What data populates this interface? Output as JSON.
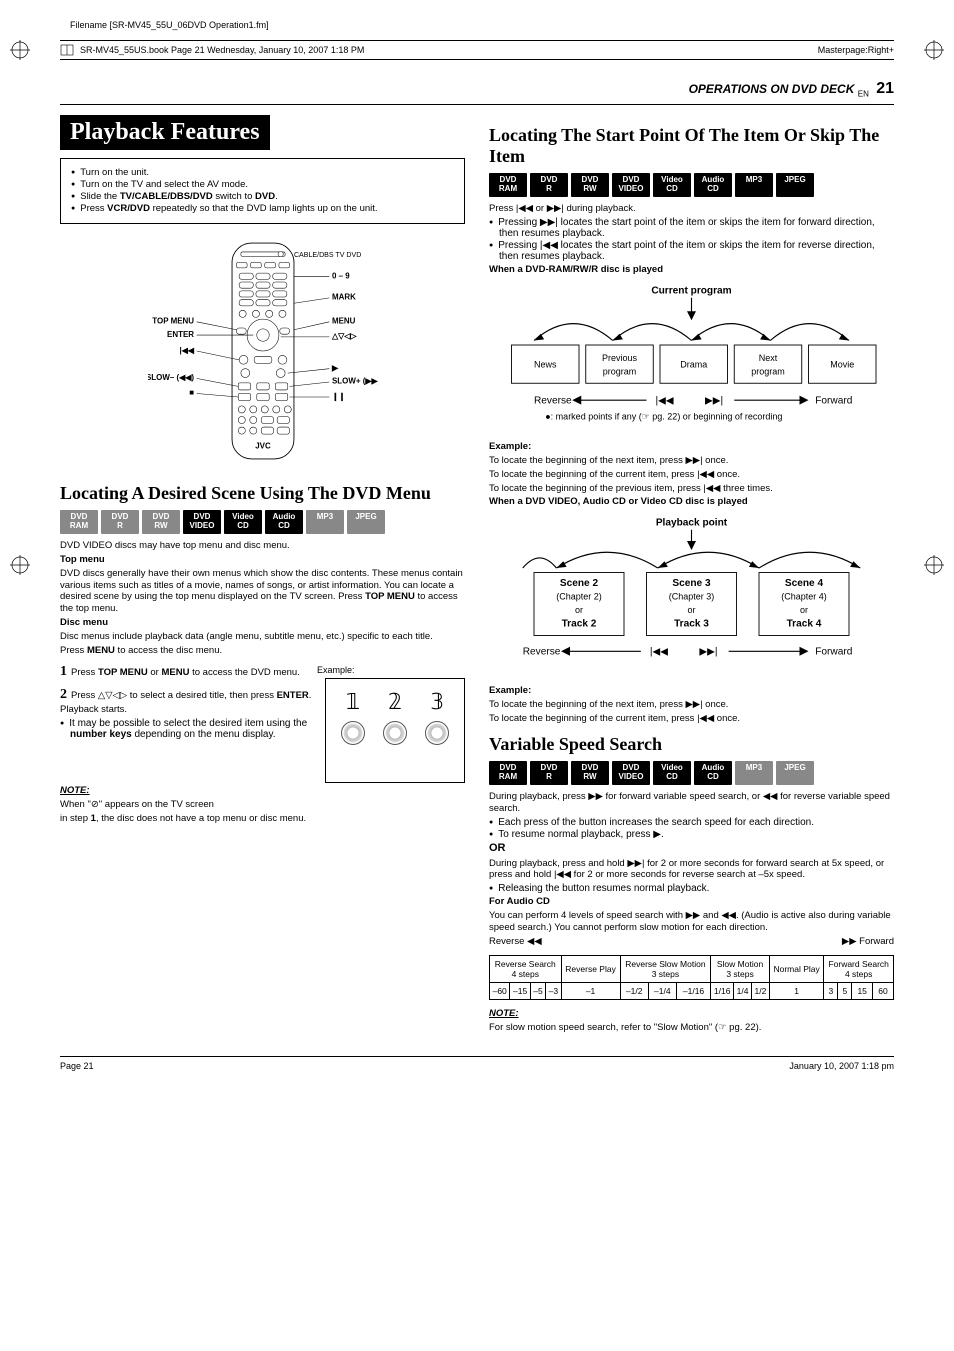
{
  "meta": {
    "filename_label": "Filename [SR-MV45_55U_06DVD Operation1.fm]",
    "book_line": "SR-MV45_55US.book  Page 21  Wednesday, January 10, 2007  1:18 PM",
    "masterpage": "Masterpage:Right+",
    "section_header": "OPERATIONS ON DVD DECK",
    "en_label": "EN",
    "page_number": "21",
    "footer_page": "Page 21",
    "footer_date": "January 10, 2007  1:18 pm"
  },
  "left": {
    "title": "Playback Features",
    "intro": [
      "Turn on the unit.",
      "Turn on the TV and select the AV mode.",
      "Slide the <b>TV/CABLE/DBS/DVD</b> switch to <b>DVD</b>.",
      "Press <b>VCR/DVD</b> repeatedly so that the DVD lamp lights up on the unit."
    ],
    "remote_labels": {
      "top_menu": "TOP MENU",
      "enter": "ENTER",
      "prev": "|◀◀",
      "slow_minus": "SLOW– (◀◀)",
      "stop": "■",
      "cable": "CABLE/DBS  TV  DVD",
      "zero_nine": "0 – 9",
      "mark": "MARK",
      "menu": "MENU",
      "nav": "△▽◁▷",
      "play": "▶",
      "slow_plus": "SLOW+ (▶▶)",
      "pause": "❙❙",
      "brand": "JVC"
    },
    "h2_locating": "Locating A Desired Scene Using The DVD Menu",
    "badges": [
      "DVD RAM",
      "DVD R",
      "DVD RW",
      "DVD VIDEO",
      "Video CD",
      "Audio CD",
      "MP3",
      "JPEG"
    ],
    "badges_dim_idx": [
      0,
      1,
      2,
      6,
      7
    ],
    "p_after_badges": "DVD VIDEO discs may have top menu and disc menu.",
    "top_menu_h": "Top menu",
    "top_menu_p": "DVD discs generally have their own menus which show the disc contents. These menus contain various items such as titles of a movie, names of songs, or artist information. You can locate a desired scene by using the top menu displayed on the TV screen. Press <b>TOP MENU</b> to access the top menu.",
    "disc_menu_h": "Disc menu",
    "disc_menu_p1": "Disc menus include playback data (angle menu, subtitle menu, etc.) specific to each title.",
    "disc_menu_p2": "Press <b>MENU</b> to access the disc menu.",
    "step1": "Press <b>TOP MENU</b> or <b>MENU</b> to access the DVD menu.",
    "example_label": "Example:",
    "step2": "Press △▽◁▷ to select a desired title, then press <b>ENTER</b>. Playback starts.",
    "step2_bullet": "It may be possible to select the desired item using the <b>number keys</b> depending on the menu display.",
    "note_h": "NOTE:",
    "note_p1": "When \"⊘\" appears on the TV screen",
    "note_p2": "in step <b>1</b>, the disc does not have a top menu or disc menu."
  },
  "right": {
    "h2_locating": "Locating The Start Point Of The Item Or Skip The Item",
    "badges1": [
      "DVD RAM",
      "DVD R",
      "DVD RW",
      "DVD VIDEO",
      "Video CD",
      "Audio CD",
      "MP3",
      "JPEG"
    ],
    "press_line": "Press |◀◀ or ▶▶| during playback.",
    "bullets1": [
      "Pressing ▶▶| locates the start point of the item or skips the item for forward direction, then resumes playback.",
      "Pressing |◀◀ locates the start point of the item or skips the item for reverse direction, then resumes playback."
    ],
    "when_ram_h": "When a DVD-RAM/RW/R disc is played",
    "diag1": {
      "current_program": "Current program",
      "boxes": [
        "News",
        "Previous program",
        "Drama",
        "Next program",
        "Movie"
      ],
      "reverse": "Reverse",
      "forward": "Forward",
      "marked": "●: marked points if any (☞ pg. 22) or beginning of recording"
    },
    "example1_h": "Example:",
    "example1_lines": [
      "To locate the beginning of the next item, press ▶▶| once.",
      "To locate the beginning of the current item, press |◀◀ once.",
      "To locate the beginning of the previous item, press |◀◀ three times."
    ],
    "when_video_h": "When a DVD VIDEO, Audio CD or Video CD disc is played",
    "diag2": {
      "playback_point": "Playback point",
      "boxes": [
        {
          "l1": "Scene 2",
          "l2": "(Chapter 2)",
          "l3": "or",
          "l4": "Track 2"
        },
        {
          "l1": "Scene 3",
          "l2": "(Chapter 3)",
          "l3": "or",
          "l4": "Track 3"
        },
        {
          "l1": "Scene 4",
          "l2": "(Chapter 4)",
          "l3": "or",
          "l4": "Track 4"
        }
      ],
      "reverse": "Reverse",
      "forward": "Forward"
    },
    "example2_h": "Example:",
    "example2_lines": [
      "To locate the beginning of the next item, press ▶▶| once.",
      "To locate the beginning of the current item, press |◀◀ once."
    ],
    "h2_variable": "Variable Speed Search",
    "badges2": [
      "DVD RAM",
      "DVD R",
      "DVD RW",
      "DVD VIDEO",
      "Video CD",
      "Audio CD",
      "MP3",
      "JPEG"
    ],
    "badges2_dim_idx": [
      6,
      7
    ],
    "var_p1": "During playback, press ▶▶ for forward variable speed search, or ◀◀ for reverse variable speed search.",
    "var_bullets": [
      "Each press of the button increases the search speed for each direction.",
      "To resume normal playback, press ▶."
    ],
    "or_h": "OR",
    "or_p": "During playback, press and hold ▶▶| for 2 or more seconds for forward search at 5x speed, or press and hold |◀◀ for 2 or more seconds for reverse search at –5x speed.",
    "or_bullet": "Releasing the button resumes normal playback.",
    "audio_h": "For Audio CD",
    "audio_p": "You can perform 4 levels of speed search with ▶▶ and ◀◀. (Audio is active also during variable speed search.) You cannot perform slow motion for each direction.",
    "speed_header": {
      "reverse": "Reverse ◀◀",
      "forward": "▶▶ Forward"
    },
    "speed_table": {
      "headers": [
        "Reverse Search\n4 steps",
        "Reverse Play",
        "Reverse Slow Motion\n3 steps",
        "Slow Motion\n3 steps",
        "Normal Play",
        "Forward Search\n4 steps"
      ],
      "header_spans": [
        4,
        1,
        3,
        3,
        1,
        4
      ],
      "values": [
        "–60",
        "–15",
        "–5",
        "–3",
        "–1",
        "–1/2",
        "–1/4",
        "–1/16",
        "1/16",
        "1/4",
        "1/2",
        "1",
        "3",
        "5",
        "15",
        "60"
      ]
    },
    "note_h": "NOTE:",
    "note_p": "For slow motion speed search, refer to \"Slow Motion\" (☞ pg. 22)."
  }
}
